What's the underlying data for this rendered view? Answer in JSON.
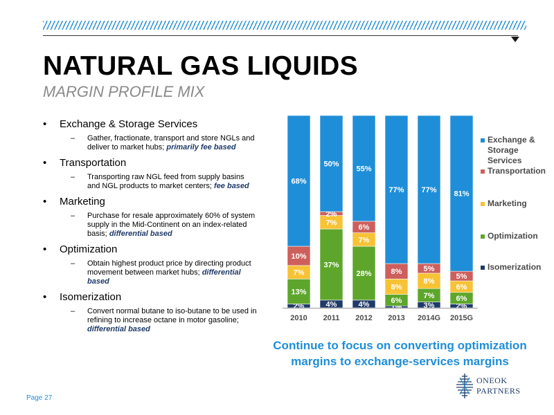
{
  "header": {
    "title": "NATURAL GAS LIQUIDS",
    "subtitle": "MARGIN PROFILE MIX"
  },
  "bullets": [
    {
      "head": "Exchange & Storage Services",
      "sub": "Gather, fractionate, transport and store NGLs and deliver to market hubs;",
      "emph": "primarily fee based"
    },
    {
      "head": "Transportation",
      "sub": "Transporting raw NGL feed from supply basins and NGL products to market centers;",
      "emph": "fee based"
    },
    {
      "head": "Marketing",
      "sub": "Purchase for resale approximately 60% of system supply in the Mid-Continent on an index-related basis;",
      "emph": "differential based"
    },
    {
      "head": "Optimization",
      "sub": "Obtain highest product price by directing product movement between market hubs;",
      "emph": "differential based"
    },
    {
      "head": "Isomerization",
      "sub": "Convert normal butane to iso-butane to be used in refining to increase octane in motor gasoline;",
      "emph": "differential based"
    }
  ],
  "chart_data": {
    "type": "bar",
    "stacked": true,
    "percent": true,
    "categories": [
      "2010",
      "2011",
      "2012",
      "2013",
      "2014G",
      "2015G"
    ],
    "series": [
      {
        "name": "Isomerization",
        "color": "#1f3a68",
        "values": [
          2,
          4,
          4,
          1,
          3,
          2
        ]
      },
      {
        "name": "Optimization",
        "color": "#5ea62b",
        "values": [
          13,
          37,
          28,
          6,
          7,
          6
        ]
      },
      {
        "name": "Marketing",
        "color": "#f7c235",
        "values": [
          7,
          7,
          7,
          8,
          8,
          6
        ]
      },
      {
        "name": "Transportation",
        "color": "#cd5f5c",
        "values": [
          10,
          2,
          6,
          8,
          5,
          5
        ]
      },
      {
        "name": "Exchange & Storage Services",
        "color": "#1f8ed8",
        "values": [
          68,
          50,
          55,
          77,
          77,
          81
        ]
      }
    ],
    "legend_order": [
      "Exchange & Storage Services",
      "Transportation",
      "Marketing",
      "Optimization",
      "Isomerization"
    ],
    "legend_position": "right",
    "ylim": [
      0,
      100
    ],
    "grid": false
  },
  "callout": "Continue to focus on converting optimization margins to exchange-services margins",
  "logo": {
    "line1": "ONEOK",
    "line2": "PARTNERS"
  },
  "footer": {
    "page": "Page 27"
  }
}
